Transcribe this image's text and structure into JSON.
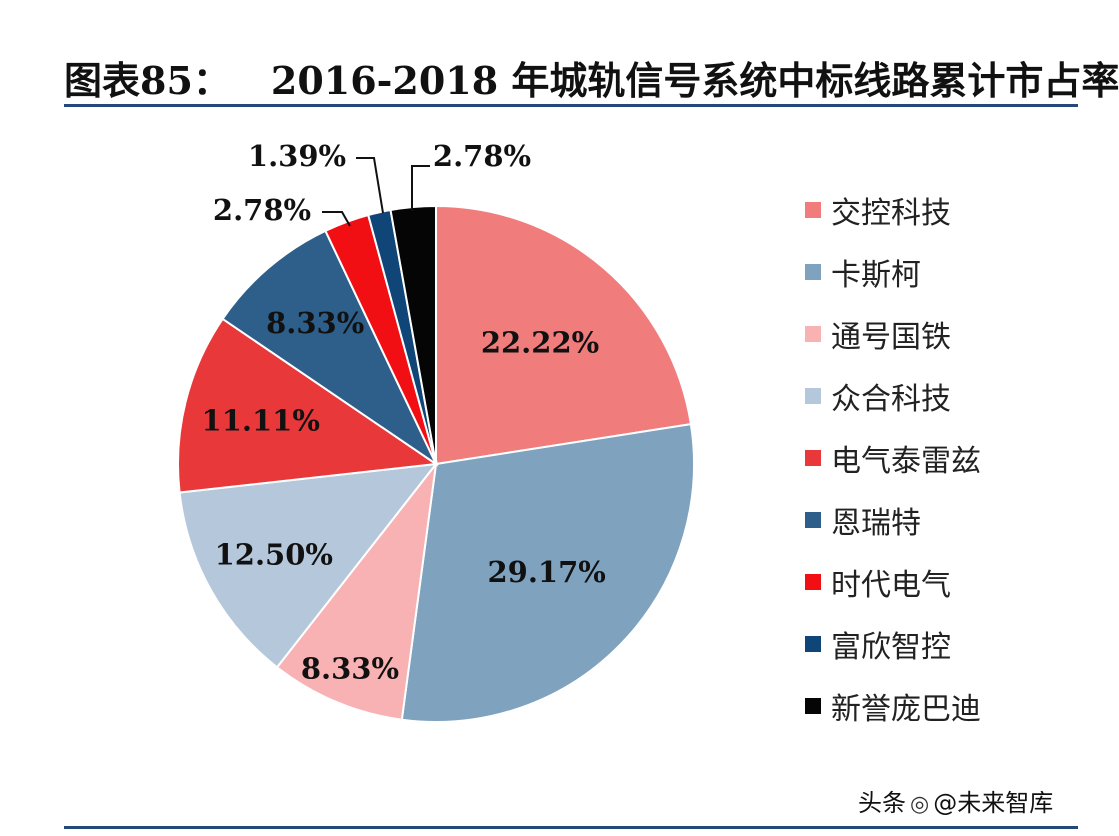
{
  "title": {
    "prefix": "图表85：",
    "text": "2016-2018 年城轨信号系统中标线路累计市占率"
  },
  "watermark": {
    "text_left": "头条",
    "at": "@",
    "text_right": "未来智库",
    "icon": "wechat-icon"
  },
  "chart_data": {
    "type": "pie",
    "start": "12 o'clock",
    "direction": "clockwise",
    "slices": [
      {
        "name": "交控科技",
        "value": 22.22,
        "label": "22.22%",
        "color": "#F07C7C"
      },
      {
        "name": "卡斯柯",
        "value": 29.17,
        "label": "29.17%",
        "color": "#7FA2BF"
      },
      {
        "name": "通号国铁",
        "value": 8.33,
        "label": "8.33%",
        "color": "#F8B2B3"
      },
      {
        "name": "众合科技",
        "value": 12.5,
        "label": "12.50%",
        "color": "#B5C8DB"
      },
      {
        "name": "电气泰雷兹",
        "value": 11.11,
        "label": "11.11%",
        "color": "#E8383A"
      },
      {
        "name": "恩瑞特",
        "value": 8.33,
        "label": "8.33%",
        "color": "#2D5F8A"
      },
      {
        "name": "时代电气",
        "value": 2.78,
        "label": "2.78%",
        "color": "#F10F13"
      },
      {
        "name": "富欣智控",
        "value": 1.39,
        "label": "1.39%",
        "color": "#0F4677"
      },
      {
        "name": "新誉庞巴迪",
        "value": 2.78,
        "label": "2.78%",
        "color": "#050505"
      }
    ],
    "legend": {
      "position": "right",
      "entries": [
        "交控科技",
        "卡斯柯",
        "通号国铁",
        "众合科技",
        "电气泰雷兹",
        "恩瑞特",
        "时代电气",
        "富欣智控",
        "新誉庞巴迪"
      ]
    }
  }
}
